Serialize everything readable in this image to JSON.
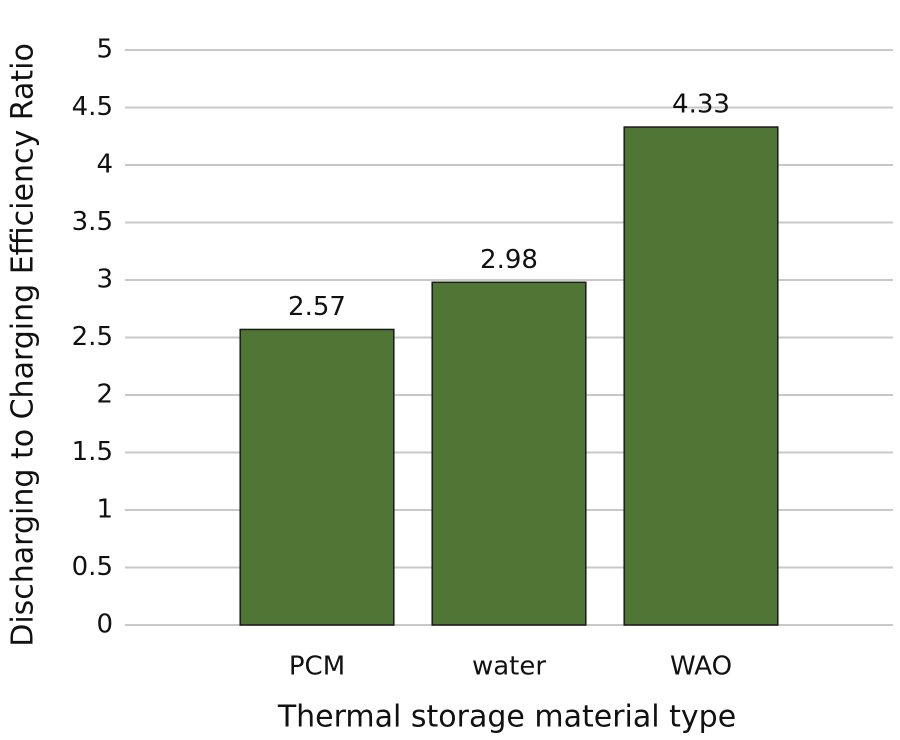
{
  "chart_data": {
    "type": "bar",
    "xlabel": "Thermal storage material type",
    "ylabel": "Discharging to Charging  Efficiency Ratio",
    "categories": [
      "PCM",
      "water",
      "WAO"
    ],
    "values": [
      2.57,
      2.98,
      4.33
    ],
    "color": "#507636",
    "ylim": [
      0,
      5
    ],
    "yticks": [
      0,
      0.5,
      1,
      1.5,
      2,
      2.5,
      3,
      3.5,
      4,
      4.5,
      5
    ],
    "grid": true
  }
}
